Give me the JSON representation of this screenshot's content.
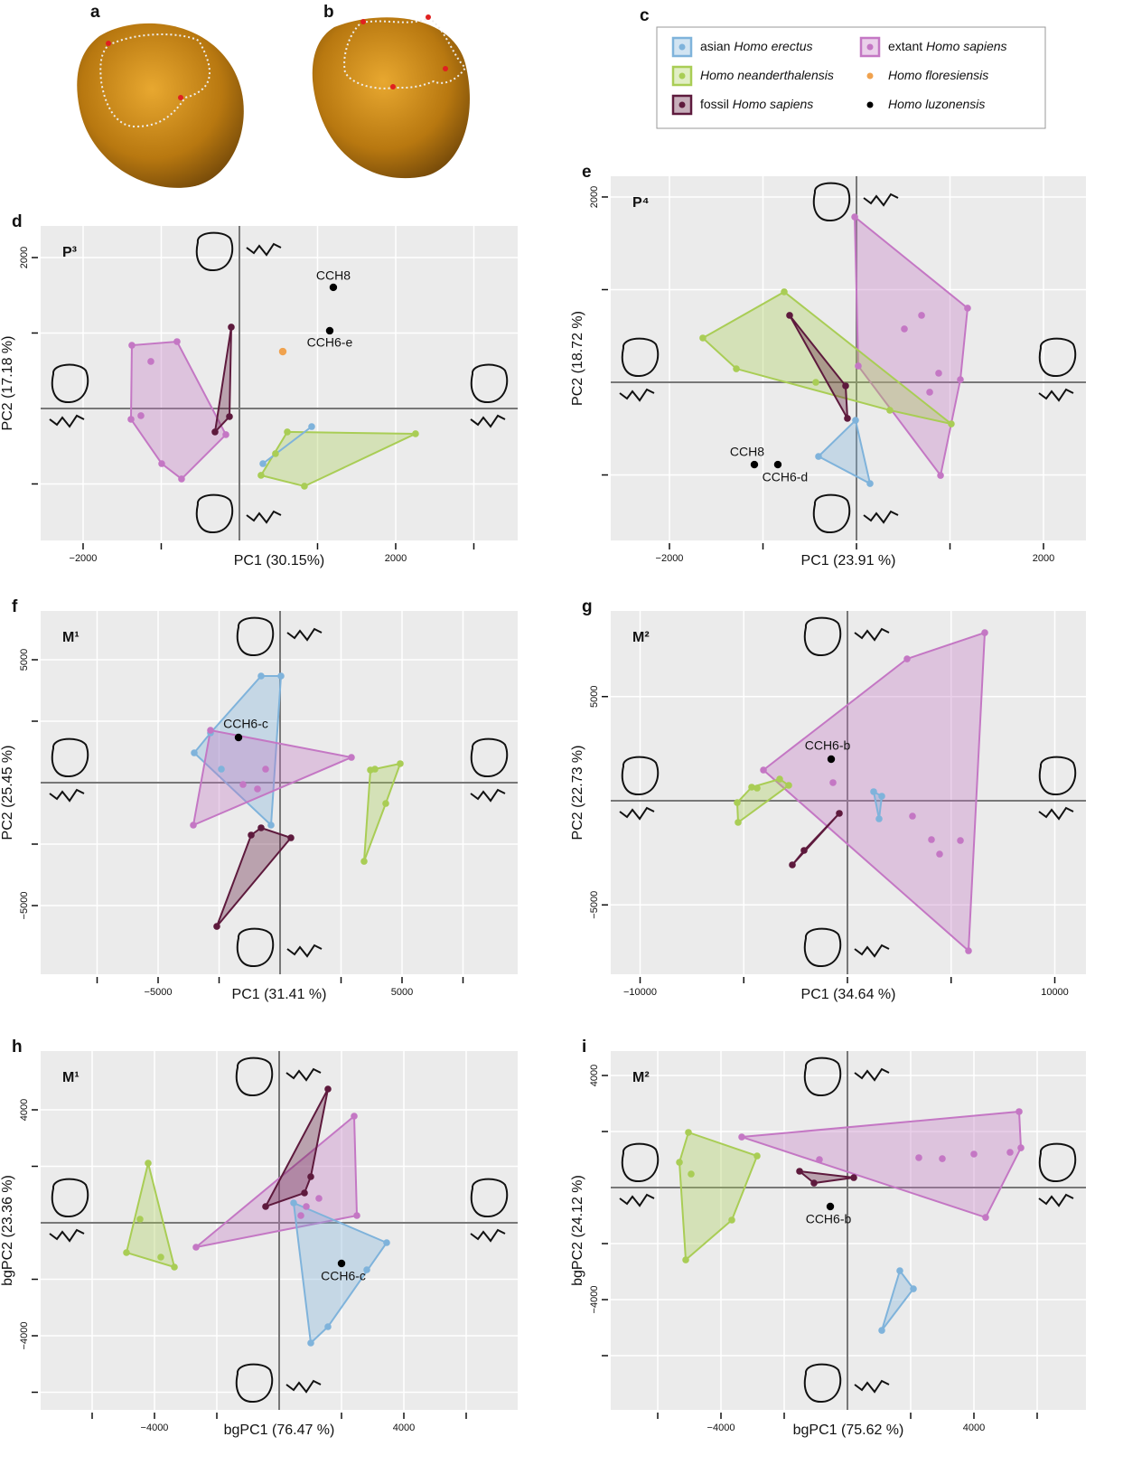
{
  "images": [
    {
      "label": "a"
    },
    {
      "label": "b"
    }
  ],
  "legend": {
    "label": "c",
    "items": [
      {
        "name": "asian Homo erectus",
        "color": "#7fb3db",
        "hull": true
      },
      {
        "name": "Homo neanderthalensis",
        "color": "#a9cd55",
        "hull": true
      },
      {
        "name": "fossil Homo sapiens",
        "color": "#5e1a3d",
        "hull": true
      },
      {
        "name": "extant Homo sapiens",
        "color": "#c477c4",
        "hull": true
      },
      {
        "name": "Homo floresiensis",
        "color": "#f0a24e",
        "hull": false
      },
      {
        "name": "Homo luzonensis",
        "color": "#000000",
        "hull": false
      }
    ]
  },
  "chart_data": [
    {
      "type": "scatter",
      "label": "d",
      "title": "P³",
      "x_label": "PC1 (30.15%)",
      "y_label": "PC2 (17.18 %)",
      "xlim": [
        -2543,
        3561
      ],
      "ylim": [
        -1749,
        2419
      ],
      "xticks": [
        {
          "value": -2000,
          "label": "−2000"
        },
        2000
      ],
      "xticks_minor": [
        -1000,
        1000,
        3000
      ],
      "yticks": [
        2000
      ],
      "yticks_minor": [
        1000,
        -1000
      ],
      "hline": 0,
      "vline": 0,
      "grid": true,
      "series": [
        {
          "color": "#c477c4",
          "hull": true,
          "x": [
            -1376,
            -798,
            -173,
            -740,
            -994,
            -1387,
            -1260,
            -1133
          ],
          "y": [
            838,
            886,
            -347,
            -934,
            -731,
            -144,
            -96,
            623
          ]
        },
        {
          "color": "#5e1a3d",
          "hull": true,
          "x": [
            -104,
            -127,
            -312
          ],
          "y": [
            1078,
            -108,
            -311
          ]
        },
        {
          "color": "#a9cd55",
          "hull": true,
          "x": [
            613,
            2254,
            832,
            277,
            462
          ],
          "y": [
            -311,
            -335,
            -1030,
            -886,
            -599
          ]
        },
        {
          "color": "#7fb3db",
          "hull": true,
          "x": [
            925,
            301
          ],
          "y": [
            -240,
            -731
          ]
        },
        {
          "color": "#f0a24e",
          "hull": false,
          "x": [
            555
          ],
          "y": [
            754
          ]
        },
        {
          "color": "#000000",
          "hull": false,
          "x": [
            1202,
            1156
          ],
          "y": [
            1605,
            1030
          ],
          "labels": [
            "CCH8",
            "CCH6-e"
          ]
        }
      ]
    },
    {
      "type": "scatter",
      "label": "e",
      "title": "P⁴",
      "x_label": "PC1 (23.91 %)",
      "y_label": "PC2 (18.72 %)",
      "xlim": [
        -2628,
        2454
      ],
      "ylim": [
        -1707,
        2224
      ],
      "xticks": [
        {
          "value": -2000,
          "label": "−2000"
        },
        2000
      ],
      "xticks_minor": [
        -1000,
        0,
        1000
      ],
      "yticks": [
        2000
      ],
      "yticks_minor": [
        1000,
        -1000
      ],
      "hline": 0,
      "vline": 0,
      "grid": true,
      "series": [
        {
          "color": "#c477c4",
          "hull": true,
          "x": [
            -19,
            1188,
            1111,
            899,
            19,
            696,
            512,
            879,
            783
          ],
          "y": [
            1785,
            800,
            29,
            -1005,
            176,
            722,
            576,
            98,
            -107
          ]
        },
        {
          "color": "#a9cd55",
          "hull": true,
          "x": [
            -773,
            -1643,
            -1285,
            1014,
            357,
            -435
          ],
          "y": [
            976,
            478,
            146,
            -449,
            -302,
            0
          ]
        },
        {
          "color": "#5e1a3d",
          "hull": true,
          "x": [
            -715,
            -116,
            -97
          ],
          "y": [
            722,
            -39,
            -390
          ]
        },
        {
          "color": "#7fb3db",
          "hull": true,
          "x": [
            -10,
            -406,
            145
          ],
          "y": [
            -410,
            -800,
            -1093
          ]
        },
        {
          "color": "#000000",
          "hull": false,
          "x": [
            -1092,
            -841
          ],
          "y": [
            -888,
            -888
          ],
          "labels": [
            "CCH8",
            "CCH6-d"
          ]
        }
      ]
    },
    {
      "type": "scatter",
      "label": "f",
      "title": "M¹",
      "x_label": "PC1 (31.41 %)",
      "y_label": "PC2 (25.45 %)",
      "xlim": [
        -9815,
        9741
      ],
      "ylim": [
        -7794,
        6985
      ],
      "xticks": [
        {
          "value": -5000,
          "label": "−5000"
        },
        5000
      ],
      "xticks_minor": [
        -7500,
        -2500,
        2500,
        7500
      ],
      "yticks": [
        5000,
        {
          "value": -5000,
          "label": "−5000"
        }
      ],
      "yticks_minor": [
        2500,
        -2500
      ],
      "hline": 0,
      "vline": 0,
      "grid": true,
      "series": [
        {
          "color": "#7fb3db",
          "hull": true,
          "x": [
            -778,
            37,
            -370,
            -3519,
            -2852,
            -2407
          ],
          "y": [
            4338,
            4338,
            -1728,
            1213,
            2022,
            551
          ]
        },
        {
          "color": "#c477c4",
          "hull": true,
          "x": [
            -2852,
            2926,
            -3556,
            -593,
            -926,
            -1519
          ],
          "y": [
            2132,
            1029,
            -1728,
            551,
            -257,
            -74
          ]
        },
        {
          "color": "#a9cd55",
          "hull": true,
          "x": [
            4926,
            4333,
            3444,
            3704,
            3889
          ],
          "y": [
            772,
            -846,
            -3199,
            515,
            551
          ]
        },
        {
          "color": "#5e1a3d",
          "hull": true,
          "x": [
            -2593,
            444,
            -778,
            -1185
          ],
          "y": [
            -5846,
            -2243,
            -1838,
            -2132
          ]
        },
        {
          "color": "#000000",
          "hull": false,
          "x": [
            -1704
          ],
          "y": [
            1838
          ],
          "labels": [
            "CCH6-c"
          ]
        }
      ]
    },
    {
      "type": "scatter",
      "label": "g",
      "title": "M²",
      "x_label": "PC1 (34.64 %)",
      "y_label": "PC2 (22.73 %)",
      "xlim": [
        -11416,
        11503
      ],
      "ylim": [
        -8330,
        9111
      ],
      "xticks": [
        {
          "value": -10000,
          "label": "−10000"
        },
        10000
      ],
      "xticks_minor": [
        -5000,
        0,
        5000
      ],
      "yticks": [
        5000,
        {
          "value": -5000,
          "label": "−5000"
        }
      ],
      "yticks_minor": [],
      "hline": 0,
      "vline": 0,
      "grid": true,
      "series": [
        {
          "color": "#c477c4",
          "hull": true,
          "x": [
            6623,
            2876,
            -4052,
            5839,
            -697,
            3137,
            4052,
            4444,
            5447
          ],
          "y": [
            8069,
            6811,
            1475,
            -7202,
            868,
            -738,
            -1866,
            -2560,
            -1909
          ]
        },
        {
          "color": "#7fb3db",
          "hull": true,
          "x": [
            1264,
            1656,
            1525
          ],
          "y": [
            434,
            217,
            -868
          ]
        },
        {
          "color": "#a9cd55",
          "hull": true,
          "x": [
            -5316,
            -5272,
            -4619,
            -4357,
            -3268,
            -2832
          ],
          "y": [
            -87,
            -1041,
            651,
            607,
            1041,
            738
          ]
        },
        {
          "color": "#5e1a3d",
          "hull": true,
          "x": [
            -392,
            -2092,
            -2658
          ],
          "y": [
            -607,
            -2386,
            -3080
          ]
        },
        {
          "color": "#000000",
          "hull": false,
          "x": [
            -784
          ],
          "y": [
            1996
          ],
          "labels": [
            "CCH6-b"
          ]
        }
      ]
    },
    {
      "type": "scatter",
      "label": "h",
      "title": "M¹",
      "x_label": "bgPC1 (76.47 %)",
      "y_label": "bgPC2 (23.36 %)",
      "xlim": [
        -7652,
        7652
      ],
      "ylim": [
        -6624,
        6080
      ],
      "xticks": [
        {
          "value": -4000,
          "label": "−4000"
        },
        4000
      ],
      "xticks_minor": [
        -6000,
        -2000,
        2000,
        6000
      ],
      "yticks": [
        4000,
        {
          "value": -4000,
          "label": "−4000"
        }
      ],
      "yticks_minor": [
        2000,
        -2000,
        -6000
      ],
      "hline": 0,
      "vline": 0,
      "grid": true,
      "series": [
        {
          "color": "#a9cd55",
          "hull": true,
          "x": [
            -4203,
            -4899,
            -3362,
            -4464,
            -3797
          ],
          "y": [
            2112,
            -1056,
            -1568,
            128,
            -1216
          ]
        },
        {
          "color": "#c477c4",
          "hull": true,
          "x": [
            2406,
            2493,
            -2667,
            1275,
            870,
            696
          ],
          "y": [
            3776,
            256,
            -864,
            864,
            576,
            256
          ]
        },
        {
          "color": "#7fb3db",
          "hull": true,
          "x": [
            464,
            3449,
            1565,
            1014,
            2812
          ],
          "y": [
            704,
            -704,
            -3680,
            -4256,
            -1664
          ]
        },
        {
          "color": "#5e1a3d",
          "hull": true,
          "x": [
            1565,
            1014,
            812,
            -435
          ],
          "y": [
            4736,
            1632,
            1056,
            576
          ]
        },
        {
          "color": "#000000",
          "hull": false,
          "x": [
            2000
          ],
          "y": [
            -1440
          ],
          "labels": [
            "CCH6-c"
          ]
        }
      ]
    },
    {
      "type": "scatter",
      "label": "i",
      "title": "M²",
      "x_label": "bgPC1 (75.62 %)",
      "y_label": "bgPC2 (24.12 %)",
      "xlim": [
        -7486,
        7543
      ],
      "ylim": [
        -7935,
        4871
      ],
      "xticks": [
        {
          "value": -4000,
          "label": "−4000"
        },
        4000
      ],
      "xticks_minor": [
        -6000,
        -2000,
        2000,
        6000
      ],
      "yticks": [
        4000,
        {
          "value": -4000,
          "label": "−4000"
        }
      ],
      "yticks_minor": [
        2000,
        -2000,
        -6000
      ],
      "hline": 0,
      "vline": 0,
      "grid": true,
      "series": [
        {
          "color": "#a9cd55",
          "hull": true,
          "x": [
            -5029,
            -5314,
            -5114,
            -3657,
            -2857,
            -4943
          ],
          "y": [
            1968,
            903,
            -2581,
            -1161,
            1129,
            484
          ]
        },
        {
          "color": "#c477c4",
          "hull": true,
          "x": [
            -3343,
            5429,
            5486,
            4371,
            -886,
            2257,
            3000,
            4000,
            5143
          ],
          "y": [
            1806,
            2710,
            1419,
            -1065,
            1000,
            1065,
            1032,
            1194,
            1258
          ]
        },
        {
          "color": "#5e1a3d",
          "hull": true,
          "x": [
            -1514,
            -1057,
            200
          ],
          "y": [
            581,
            161,
            355
          ]
        },
        {
          "color": "#7fb3db",
          "hull": true,
          "x": [
            1657,
            2086,
            1086
          ],
          "y": [
            -2968,
            -3613,
            -5097
          ]
        },
        {
          "color": "#000000",
          "hull": false,
          "x": [
            -543
          ],
          "y": [
            -677
          ],
          "labels": [
            "CCH6-b"
          ]
        }
      ]
    }
  ]
}
